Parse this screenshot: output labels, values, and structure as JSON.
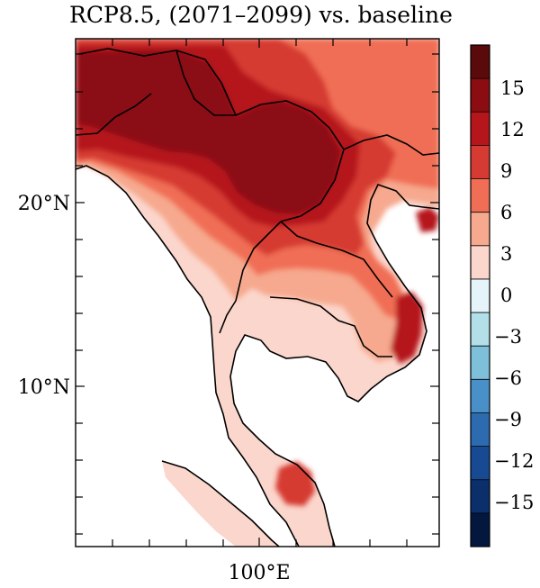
{
  "title": "RCP8.5, (2071–2099) vs. baseline",
  "map": {
    "lat_labels": [
      "20°N",
      "10°N"
    ],
    "lon_labels": [
      "100°E"
    ]
  },
  "colorbar": {
    "labels": [
      "15",
      "12",
      "9",
      "6",
      "3",
      "0",
      "−3",
      "−6",
      "−9",
      "−12",
      "−15"
    ],
    "colors": [
      "#5a0a0a",
      "#8b0d12",
      "#b5161b",
      "#d63b33",
      "#f06e55",
      "#f6a98e",
      "#fbd6cc",
      "#e4f4f8",
      "#b3e0e8",
      "#7ec0da",
      "#4a90c8",
      "#2d6bb0",
      "#174a92",
      "#0b2f6a",
      "#04173f"
    ]
  }
}
